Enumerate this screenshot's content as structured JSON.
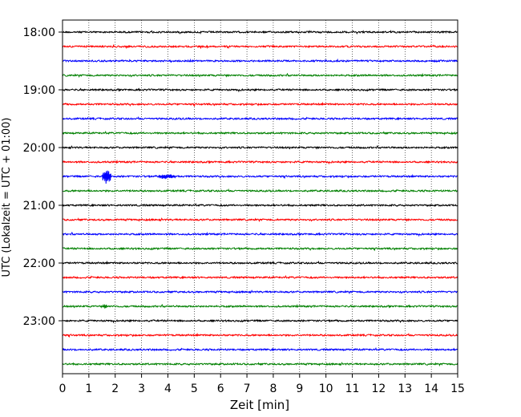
{
  "chart_data": {
    "type": "line",
    "title": "",
    "xlabel": "Zeit  [min]",
    "ylabel": "UTC (Lokalzeit = UTC + 01:00)",
    "xlim": [
      0,
      15
    ],
    "x_ticks": [
      "0",
      "1",
      "2",
      "3",
      "4",
      "5",
      "6",
      "7",
      "8",
      "9",
      "10",
      "11",
      "12",
      "13",
      "14",
      "15"
    ],
    "y_tick_labels": [
      "18:00",
      "19:00",
      "20:00",
      "21:00",
      "22:00",
      "23:00"
    ],
    "grid": "vertical dotted at each minute",
    "trace_interval_min": 15,
    "trace_count": 24,
    "trace_colors": [
      "#000000",
      "#ff0000",
      "#0000ff",
      "#008000"
    ],
    "events": [
      {
        "trace_start": "20:30",
        "start_min": 1.5,
        "end_min": 1.85,
        "relative_amplitude": "large"
      },
      {
        "trace_start": "20:30",
        "start_min": 3.6,
        "end_min": 4.3,
        "relative_amplitude": "small"
      },
      {
        "trace_start": "22:45",
        "start_min": 1.5,
        "end_min": 1.7,
        "relative_amplitude": "small"
      }
    ]
  }
}
